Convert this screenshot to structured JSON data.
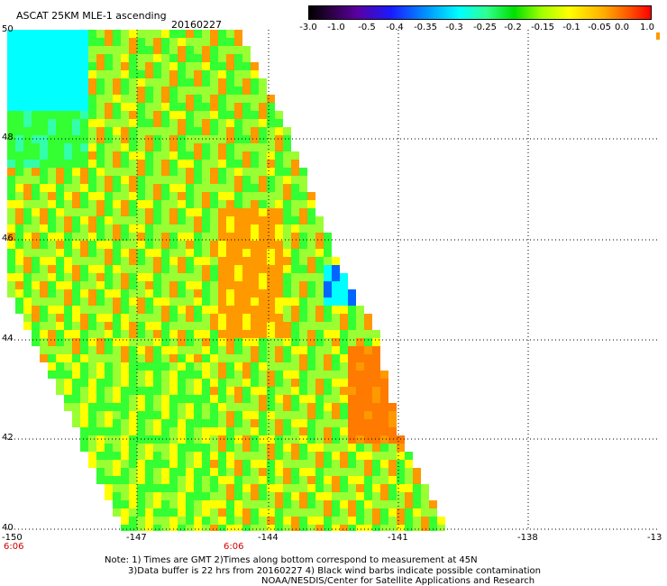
{
  "header": {
    "title": "ASCAT 25KM MLE-1 ascending",
    "date": "20160227"
  },
  "colorbar": {
    "labels": [
      "-3.0",
      "-1.0",
      "-0.5",
      "-0.4",
      "-0.35",
      "-0.3",
      "-0.25",
      "-0.2",
      "-0.15",
      "-0.1",
      "-0.05",
      "0.0",
      "1.0"
    ],
    "colors": [
      "#000000",
      "#5a00a0",
      "#1a1aff",
      "#0090ff",
      "#00ffff",
      "#30ff90",
      "#00e000",
      "#a0ff00",
      "#ffff00",
      "#ffb000",
      "#ff5000",
      "#ff0000"
    ]
  },
  "map": {
    "lat_labels": [
      "50",
      "48",
      "46",
      "44",
      "42",
      "40"
    ],
    "lon_labels": [
      "-150",
      "-147",
      "-144",
      "-141",
      "-138",
      "-13"
    ],
    "time_labels": [
      "6:06",
      "6:06"
    ],
    "palette": {
      "green": "#33ff33",
      "lgreen": "#99ff33",
      "yellow": "#ffff00",
      "orange": "#ff9900",
      "dorange": "#ff7a00",
      "cyan": "#00ffff",
      "teal": "#33ffaa",
      "blue": "#0066ff"
    }
  },
  "notes": {
    "line1": "Note: 1) Times are GMT 2)Times along bottom correspond to measurement at 45N",
    "line2": "3)Data buffer is 22 hrs from 20160227 4) Black wind barbs indicate possible contamination",
    "line3": "NOAA/NESDIS/Center for Satellite Applications and Research"
  }
}
